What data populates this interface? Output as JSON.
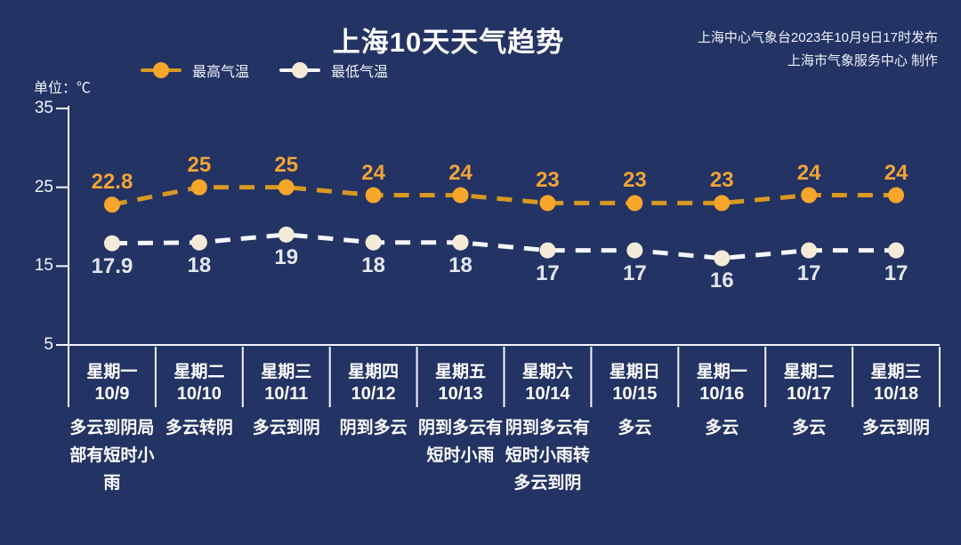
{
  "colors": {
    "background": "#233363",
    "axis": "#f4f6fb",
    "text": "#ffffff"
  },
  "header": {
    "title": "上海10天天气趋势",
    "issued_by": "上海中心气象台2023年10月9日17时发布",
    "produced_by": "上海市气象服务中心 制作"
  },
  "unit_label": "单位：℃",
  "chart_data": {
    "type": "line",
    "title": "上海10天天气趋势",
    "ylabel": "单位：℃",
    "ylim": [
      5,
      35
    ],
    "yticks": [
      35,
      25,
      15,
      5
    ],
    "grid": false,
    "legend_position": "top-left",
    "line_style": "dashed",
    "categories": [
      {
        "weekday": "星期一",
        "date": "10/9",
        "weather": "多云到阴局部有短时小雨"
      },
      {
        "weekday": "星期二",
        "date": "10/10",
        "weather": "多云转阴"
      },
      {
        "weekday": "星期三",
        "date": "10/11",
        "weather": "多云到阴"
      },
      {
        "weekday": "星期四",
        "date": "10/12",
        "weather": "阴到多云"
      },
      {
        "weekday": "星期五",
        "date": "10/13",
        "weather": "阴到多云有短时小雨"
      },
      {
        "weekday": "星期六",
        "date": "10/14",
        "weather": "阴到多云有短时小雨转多云到阴"
      },
      {
        "weekday": "星期日",
        "date": "10/15",
        "weather": "多云"
      },
      {
        "weekday": "星期一",
        "date": "10/16",
        "weather": "多云"
      },
      {
        "weekday": "星期二",
        "date": "10/17",
        "weather": "多云"
      },
      {
        "weekday": "星期三",
        "date": "10/18",
        "weather": "多云到阴"
      }
    ],
    "series": [
      {
        "name": "最高气温",
        "values": [
          22.8,
          25,
          25,
          24,
          24,
          23,
          23,
          23,
          24,
          24
        ],
        "line_color": "#d9981f",
        "dot_color": "#f5a62b",
        "label_color": "#f0a437",
        "label_position": "above"
      },
      {
        "name": "最低气温",
        "values": [
          17.9,
          18,
          19,
          18,
          18,
          17,
          17,
          16,
          17,
          17
        ],
        "line_color": "#f4f6fb",
        "dot_color": "#f3ead8",
        "label_color": "#e3e6ef",
        "label_position": "below"
      }
    ]
  }
}
